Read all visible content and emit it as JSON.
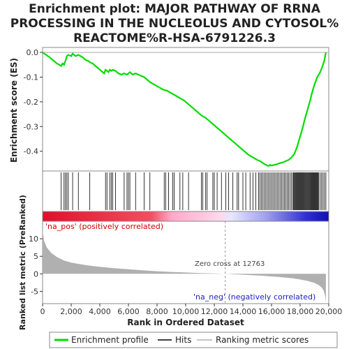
{
  "chart_data": {
    "type": "line",
    "title_lines": [
      "Enrichment plot: MAJOR PATHWAY OF RRNA",
      "PROCESSING IN THE NUCLEOLUS AND CYTOSOL%",
      "REACTOME%R-HSA-6791226.3"
    ],
    "xlabel": "Rank in Ordered Dataset",
    "ylabel_top": "Enrichment score (ES)",
    "ylabel_bottom": "Ranked list metric (PreRanked)",
    "xlim": [
      0,
      20000
    ],
    "es_ylim": [
      -0.48,
      0.02
    ],
    "metric_ylim": [
      -8.5,
      15
    ],
    "x_ticks": [
      0,
      2000,
      4000,
      6000,
      8000,
      10000,
      12000,
      14000,
      16000,
      18000,
      20000
    ],
    "x_tick_labels": [
      "0",
      "2,000",
      "4,000",
      "6,000",
      "8,000",
      "10,000",
      "12,000",
      "14,000",
      "16,000",
      "18,000",
      "20,000"
    ],
    "es_ticks": [
      0.0,
      -0.1,
      -0.2,
      -0.3,
      -0.4
    ],
    "es_tick_labels": [
      "0.0",
      "-0.1",
      "-0.2",
      "-0.3",
      "-0.4"
    ],
    "metric_ticks": [
      10,
      5,
      0,
      -5
    ],
    "metric_tick_labels": [
      "10",
      "5",
      "0",
      "-5"
    ],
    "enrichment_profile": {
      "name": "Enrichment profile",
      "color": "#00dd00",
      "x": [
        0,
        500,
        1000,
        1300,
        1400,
        1500,
        1550,
        1600,
        1700,
        1800,
        2000,
        2100,
        2200,
        2300,
        2500,
        2800,
        3000,
        3200,
        3300,
        3500,
        3700,
        3900,
        4100,
        4300,
        4400,
        4500,
        4600,
        4700,
        4800,
        4900,
        5100,
        5300,
        5500,
        5700,
        5900,
        6100,
        6300,
        6500,
        6700,
        6900,
        7100,
        7300,
        7500,
        7800,
        8100,
        8400,
        8700,
        9000,
        9300,
        9600,
        9900,
        10200,
        10500,
        10800,
        11100,
        11400,
        11700,
        12000,
        12300,
        12600,
        12900,
        13200,
        13500,
        13800,
        14100,
        14400,
        14700,
        15000,
        15200,
        15400,
        15600,
        15800,
        15900,
        16000,
        16200,
        16400,
        16600,
        16800,
        17000,
        17200,
        17400,
        17600,
        17700,
        17800,
        17900,
        18000,
        18100,
        18200,
        18300,
        18400,
        18500,
        18600,
        18700,
        18800,
        18900,
        19000,
        19100,
        19200,
        19300,
        19400,
        19500,
        19600,
        19700,
        19800
      ],
      "y": [
        0.0,
        -0.02,
        -0.045,
        -0.055,
        -0.045,
        -0.05,
        -0.04,
        -0.035,
        -0.015,
        -0.01,
        -0.015,
        -0.005,
        -0.01,
        -0.015,
        -0.01,
        -0.02,
        -0.03,
        -0.035,
        -0.04,
        -0.045,
        -0.055,
        -0.065,
        -0.075,
        -0.085,
        -0.07,
        -0.075,
        -0.08,
        -0.07,
        -0.075,
        -0.07,
        -0.075,
        -0.085,
        -0.09,
        -0.085,
        -0.09,
        -0.08,
        -0.09,
        -0.085,
        -0.09,
        -0.095,
        -0.1,
        -0.11,
        -0.12,
        -0.13,
        -0.14,
        -0.15,
        -0.155,
        -0.165,
        -0.175,
        -0.185,
        -0.195,
        -0.21,
        -0.225,
        -0.24,
        -0.255,
        -0.265,
        -0.28,
        -0.295,
        -0.31,
        -0.325,
        -0.34,
        -0.355,
        -0.37,
        -0.385,
        -0.4,
        -0.415,
        -0.425,
        -0.435,
        -0.44,
        -0.448,
        -0.455,
        -0.46,
        -0.455,
        -0.458,
        -0.455,
        -0.452,
        -0.448,
        -0.445,
        -0.44,
        -0.435,
        -0.425,
        -0.41,
        -0.395,
        -0.38,
        -0.36,
        -0.34,
        -0.32,
        -0.3,
        -0.275,
        -0.255,
        -0.235,
        -0.215,
        -0.195,
        -0.17,
        -0.15,
        -0.13,
        -0.115,
        -0.1,
        -0.09,
        -0.08,
        -0.065,
        -0.05,
        -0.03,
        0.0
      ]
    },
    "hits": {
      "name": "Hits",
      "color": "#000000",
      "ranks": [
        1300,
        1500,
        1600,
        1700,
        1800,
        2100,
        2500,
        3300,
        4400,
        4500,
        4700,
        4800,
        4900,
        5100,
        5700,
        5900,
        6000,
        6100,
        6500,
        7100,
        7500,
        8500,
        8600,
        8800,
        9100,
        9200,
        9600,
        9800,
        10200,
        11100,
        11200,
        11400,
        11500,
        11900,
        12000,
        12200,
        12500,
        12800,
        13000,
        13300,
        13600,
        13700,
        14000,
        14200,
        14500,
        14700,
        14900,
        15100,
        15200,
        15300,
        15400,
        15500,
        15600,
        15700,
        15800,
        15900,
        16000,
        16100,
        16200,
        16300,
        16400,
        16500,
        16600,
        16700,
        16800,
        16900,
        17000,
        17100,
        17200,
        17300,
        17400,
        17500,
        17550,
        17600,
        17650,
        17700,
        17750,
        17800,
        17850,
        17900,
        17950,
        18000,
        18050,
        18100,
        18150,
        18200,
        18250,
        18300,
        18350,
        18400,
        18450,
        18500,
        18550,
        18600,
        18650,
        18700,
        18750,
        18800,
        18850,
        18900,
        18950,
        19000,
        19050,
        19100,
        19150,
        19200,
        19250,
        19300,
        19400,
        19500,
        19600,
        19700,
        19800
      ]
    },
    "ranking_metric": {
      "name": "Ranking metric scores",
      "color": "#b0b0b0",
      "x": [
        0,
        100,
        300,
        600,
        1000,
        1500,
        2000,
        3000,
        4000,
        5000,
        6000,
        7000,
        8000,
        9000,
        10000,
        11000,
        12000,
        12763,
        13500,
        14500,
        15500,
        16500,
        17500,
        18000,
        18500,
        19000,
        19300,
        19500,
        19650,
        19750,
        19800
      ],
      "y": [
        12.5,
        9.5,
        7.5,
        6.0,
        4.8,
        3.8,
        3.2,
        2.5,
        2.0,
        1.6,
        1.3,
        1.0,
        0.75,
        0.55,
        0.38,
        0.22,
        0.1,
        0.0,
        -0.15,
        -0.35,
        -0.6,
        -0.9,
        -1.3,
        -1.6,
        -2.0,
        -2.6,
        -3.2,
        -3.9,
        -4.8,
        -6.5,
        -8.2
      ]
    },
    "zero_cross": 12763,
    "zero_cross_label": "Zero cross at 12763",
    "pos_label": "'na_pos' (positively correlated)",
    "neg_label": "'na_neg' (negatively correlated)",
    "heatmap_colors": {
      "pos": "#e0102a",
      "mid": "#ffd0e8",
      "midneg": "#d8d8ff",
      "neg": "#1010c0"
    },
    "legend": [
      "Enrichment profile",
      "Hits",
      "Ranking metric scores"
    ]
  }
}
